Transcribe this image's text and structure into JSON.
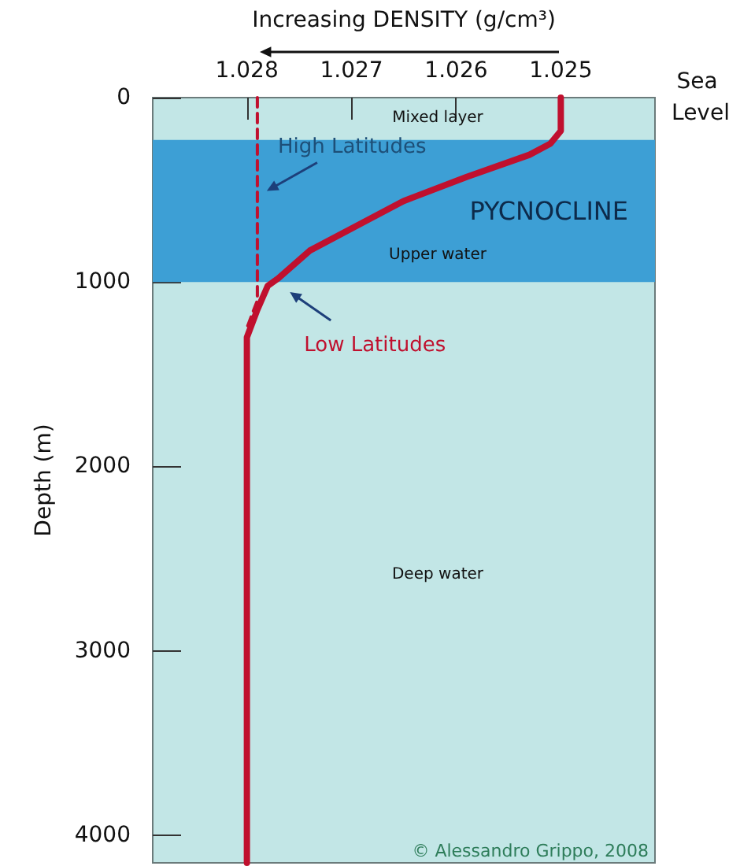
{
  "chart_data": {
    "type": "line",
    "xlabel": "Increasing DENSITY (g/cm³)",
    "ylabel": "Depth (m)",
    "xlim": [
      1.0289,
      1.0241
    ],
    "xticks": [
      1.028,
      1.027,
      1.026,
      1.025
    ],
    "ylim": [
      4150,
      0
    ],
    "yticks": [
      0,
      1000,
      2000,
      3000,
      4000
    ],
    "grid": false,
    "legend": false,
    "marker": "none",
    "series": [
      {
        "name": "High Latitudes",
        "color": "#c0102e",
        "line_style": "dashed",
        "x": [
          1.0279,
          1.0279,
          1.0279,
          1.028
        ],
        "values": [
          0,
          250,
          1100,
          1250
        ]
      },
      {
        "name": "Low Latitudes",
        "color": "#c0102e",
        "line_style": "solid",
        "x": [
          1.025,
          1.025,
          1.0251,
          1.0253,
          1.0259,
          1.0265,
          1.0269,
          1.0274,
          1.0277,
          1.0278,
          1.0279,
          1.028,
          1.028,
          1.028
        ],
        "values": [
          0,
          180,
          250,
          310,
          430,
          560,
          680,
          830,
          980,
          1020,
          1150,
          1300,
          1550,
          4150
        ]
      }
    ],
    "bands": [
      {
        "axis": "y",
        "from": 230,
        "to": 1000,
        "label": "PYCNOCLINE",
        "color": "#3d9fd5"
      }
    ],
    "annotations": [
      "Mixed layer",
      "Upper water",
      "Deep water",
      "Sea Level",
      "© Alessandro Grippo, 2008"
    ]
  }
}
